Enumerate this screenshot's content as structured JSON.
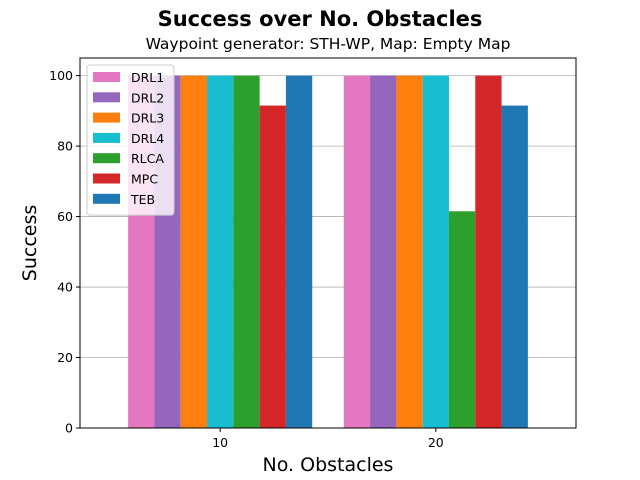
{
  "chart_data": {
    "type": "bar",
    "title": "Success over No. Obstacles",
    "subtitle": "Waypoint generator: STH-WP, Map: Empty Map",
    "xlabel": "No. Obstacles",
    "ylabel": "Success",
    "categories": [
      "10",
      "20"
    ],
    "ylim": [
      0,
      105
    ],
    "yticks": [
      0,
      20,
      40,
      60,
      80,
      100
    ],
    "grid": "horizontal",
    "legend_position": "top-left",
    "series": [
      {
        "name": "DRL1",
        "color": "#e377c2",
        "values": [
          100,
          100
        ]
      },
      {
        "name": "DRL2",
        "color": "#9467bd",
        "values": [
          100,
          100
        ]
      },
      {
        "name": "DRL3",
        "color": "#ff7f0e",
        "values": [
          100,
          100
        ]
      },
      {
        "name": "DRL4",
        "color": "#17becf",
        "values": [
          100,
          100
        ]
      },
      {
        "name": "RLCA",
        "color": "#2ca02c",
        "values": [
          100,
          61.5
        ]
      },
      {
        "name": "MPC",
        "color": "#d62728",
        "values": [
          91.5,
          100
        ]
      },
      {
        "name": "TEB",
        "color": "#1f77b4",
        "values": [
          100,
          91.5
        ]
      }
    ]
  }
}
